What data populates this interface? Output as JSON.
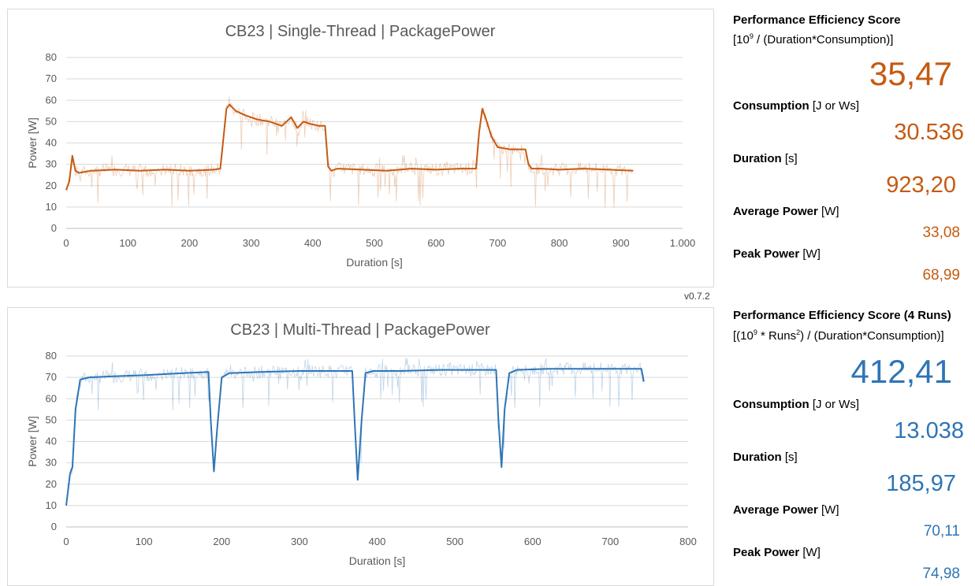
{
  "version": "v0.7.2",
  "chart_data": [
    {
      "type": "line",
      "title": "CB23 | Single-Thread | PackagePower",
      "xlabel": "Duration [s]",
      "ylabel": "Power [W]",
      "xlim": [
        0,
        1000
      ],
      "ylim": [
        0,
        80
      ],
      "x_ticks": [
        "0",
        "100",
        "200",
        "300",
        "400",
        "500",
        "600",
        "700",
        "800",
        "900",
        "1.000"
      ],
      "y_ticks": [
        "0",
        "10",
        "20",
        "30",
        "40",
        "50",
        "60",
        "70",
        "80"
      ],
      "color": "#c55a11",
      "series": [
        {
          "name": "smoothed",
          "x": [
            0,
            5,
            10,
            15,
            20,
            40,
            80,
            120,
            160,
            200,
            240,
            250,
            260,
            265,
            275,
            290,
            310,
            330,
            350,
            365,
            375,
            385,
            395,
            410,
            420,
            425,
            430,
            440,
            480,
            520,
            560,
            600,
            640,
            665,
            670,
            675,
            680,
            690,
            700,
            720,
            745,
            750,
            755,
            770,
            800,
            840,
            880,
            920
          ],
          "values": [
            18,
            22,
            34,
            27,
            26,
            27,
            27.5,
            27,
            27.5,
            27,
            27.5,
            28,
            56,
            58,
            55,
            53,
            51,
            50,
            48,
            52,
            47,
            50,
            49,
            48,
            48,
            29,
            27,
            28,
            27.5,
            27,
            28,
            27.5,
            28,
            28,
            45,
            56,
            52,
            43,
            38,
            37,
            37,
            30,
            28,
            28,
            27.5,
            28,
            27.5,
            27
          ]
        }
      ]
    },
    {
      "type": "line",
      "title": "CB23 | Multi-Thread | PackagePower",
      "xlabel": "Duration [s]",
      "ylabel": "Power [W]",
      "xlim": [
        0,
        800
      ],
      "ylim": [
        0,
        80
      ],
      "x_ticks": [
        "0",
        "100",
        "200",
        "300",
        "400",
        "500",
        "600",
        "700",
        "800"
      ],
      "y_ticks": [
        "0",
        "10",
        "20",
        "30",
        "40",
        "50",
        "60",
        "70",
        "80"
      ],
      "color": "#2e75b6",
      "series": [
        {
          "name": "smoothed",
          "x": [
            0,
            5,
            8,
            12,
            18,
            30,
            60,
            100,
            150,
            183,
            186,
            190,
            194,
            200,
            210,
            250,
            300,
            350,
            368,
            371,
            375,
            380,
            385,
            395,
            430,
            480,
            520,
            553,
            556,
            560,
            564,
            570,
            580,
            620,
            680,
            720,
            740,
            743
          ],
          "values": [
            10,
            25,
            28,
            55,
            69,
            70,
            70.5,
            71,
            72,
            72.5,
            50,
            26,
            45,
            70,
            72,
            72.5,
            73,
            73,
            73,
            50,
            22,
            50,
            72,
            73,
            73,
            73.5,
            73.5,
            73.5,
            50,
            28,
            55,
            72,
            73.5,
            74,
            74,
            74,
            74,
            68
          ]
        }
      ]
    }
  ],
  "stats_single": {
    "pes_label": "Performance Efficiency Score",
    "pes_formula_pre": "[10",
    "pes_formula_exp": "9",
    "pes_formula_post": " / (Duration*Consumption)]",
    "pes_value": "35,47",
    "consumption_label": "Consumption",
    "consumption_unit": "[J or Ws]",
    "consumption_value": "30.536",
    "duration_label": "Duration",
    "duration_unit": "[s]",
    "duration_value": "923,20",
    "avg_label": "Average Power",
    "avg_unit": "[W]",
    "avg_value": "33,08",
    "peak_label": "Peak Power",
    "peak_unit": "[W]",
    "peak_value": "68,99"
  },
  "stats_multi": {
    "pes_label": "Performance Efficiency Score (4 Runs)",
    "pes_formula_pre": "[(10",
    "pes_formula_exp": "9",
    "pes_formula_mid": " * Runs",
    "pes_formula_exp2": "2",
    "pes_formula_post": ") / (Duration*Consumption)]",
    "pes_value": "412,41",
    "consumption_label": "Consumption",
    "consumption_unit": "[J or Ws]",
    "consumption_value": "13.038",
    "duration_label": "Duration",
    "duration_unit": "[s]",
    "duration_value": "185,97",
    "avg_label": "Average Power",
    "avg_unit": "[W]",
    "avg_value": "70,11",
    "peak_label": "Peak Power",
    "peak_unit": "[W]",
    "peak_value": "74,98"
  }
}
